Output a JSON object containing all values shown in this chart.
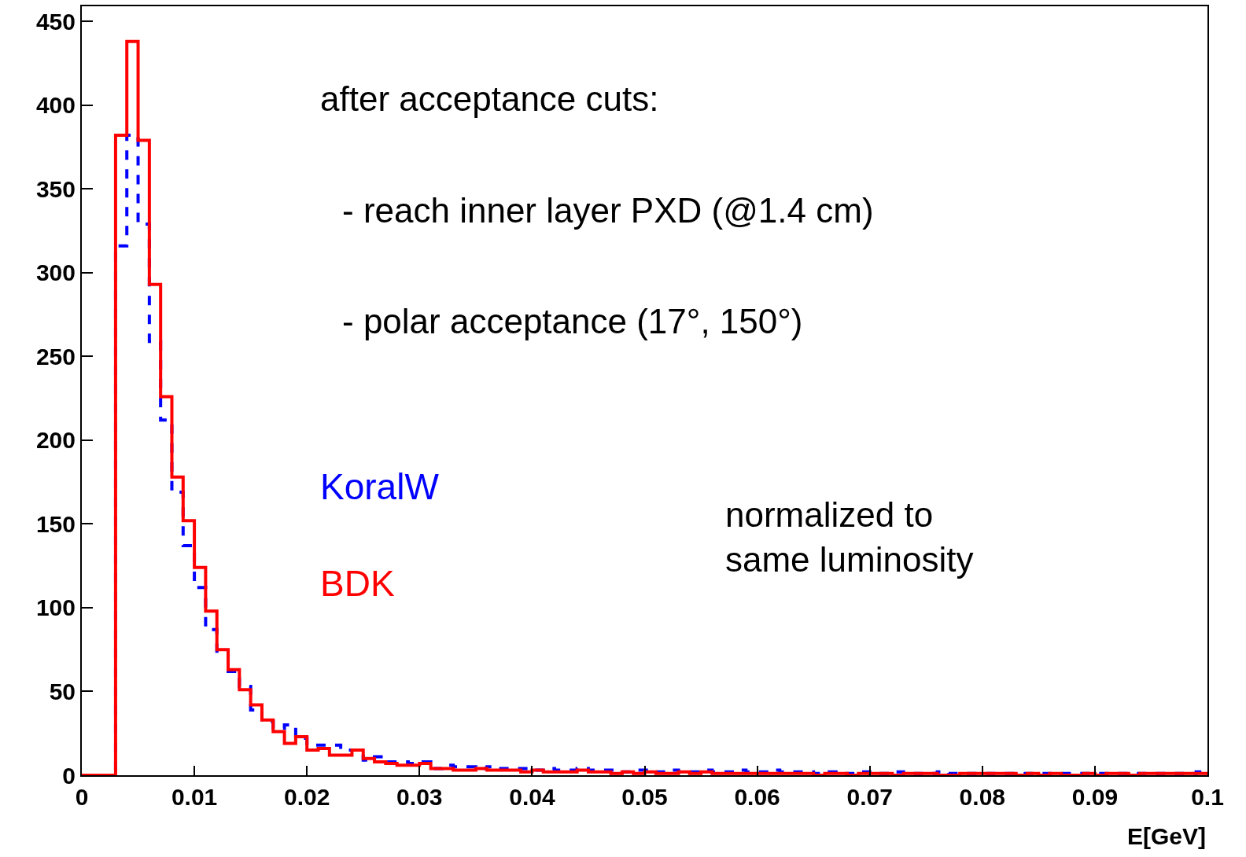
{
  "chart_data": {
    "type": "histogram",
    "xlabel": "E[GeV]",
    "bins": [
      0,
      0.001,
      0.002,
      0.003,
      0.004,
      0.005,
      0.006,
      0.007,
      0.008,
      0.009,
      0.01,
      0.011,
      0.012,
      0.013,
      0.014,
      0.015,
      0.016,
      0.017,
      0.018,
      0.019,
      0.02,
      0.021,
      0.022,
      0.023,
      0.024,
      0.025,
      0.026,
      0.027,
      0.028,
      0.029,
      0.03,
      0.031,
      0.032,
      0.033,
      0.034,
      0.035,
      0.036,
      0.037,
      0.038,
      0.039,
      0.04,
      0.041,
      0.042,
      0.043,
      0.044,
      0.045,
      0.046,
      0.047,
      0.048,
      0.049,
      0.05,
      0.051,
      0.052,
      0.053,
      0.054,
      0.055,
      0.056,
      0.057,
      0.058,
      0.059,
      0.06,
      0.061,
      0.062,
      0.063,
      0.064,
      0.065,
      0.066,
      0.067,
      0.068,
      0.069,
      0.07,
      0.071,
      0.072,
      0.073,
      0.074,
      0.075,
      0.076,
      0.077,
      0.078,
      0.079,
      0.08,
      0.081,
      0.082,
      0.083,
      0.084,
      0.085,
      0.086,
      0.087,
      0.088,
      0.089,
      0.09,
      0.091,
      0.092,
      0.093,
      0.094,
      0.095,
      0.096,
      0.097,
      0.098,
      0.099,
      0.1
    ],
    "series": [
      {
        "name": "KoralW",
        "color": "#0000ff",
        "line_style": "dashed",
        "values": [
          0,
          0,
          0,
          316,
          382,
          329,
          259,
          212,
          169,
          137,
          112,
          87,
          74,
          62,
          53,
          39,
          32,
          28,
          30,
          22,
          18,
          18,
          18,
          15,
          15,
          9,
          11,
          8,
          8,
          7,
          8,
          4,
          6,
          5,
          5,
          4,
          5,
          4,
          4,
          4,
          3,
          4,
          3,
          3,
          4,
          3,
          3,
          3,
          2,
          3,
          3,
          2,
          3,
          2,
          2,
          3,
          2,
          2,
          3,
          2,
          2,
          3,
          2,
          2,
          2,
          1,
          2,
          1,
          1,
          2,
          1,
          1,
          2,
          1,
          1,
          1,
          2,
          1,
          1,
          1,
          1,
          1,
          1,
          1,
          1,
          1,
          1,
          1,
          1,
          1,
          1,
          1,
          1,
          1,
          1,
          1,
          1,
          1,
          1,
          2
        ]
      },
      {
        "name": "BDK",
        "color": "#ff0000",
        "line_style": "solid",
        "values": [
          0,
          0,
          0,
          382,
          438,
          379,
          293,
          226,
          178,
          152,
          124,
          98,
          75,
          63,
          51,
          42,
          33,
          26,
          19,
          23,
          15,
          16,
          12,
          12,
          15,
          10,
          8,
          7,
          6,
          6,
          7,
          4,
          4,
          3,
          3,
          4,
          3,
          3,
          3,
          2,
          3,
          2,
          2,
          2,
          3,
          2,
          2,
          1,
          2,
          1,
          2,
          1,
          1,
          2,
          1,
          2,
          1,
          1,
          1,
          1,
          1,
          1,
          1,
          1,
          1,
          0,
          1,
          1,
          0,
          1,
          1,
          1,
          0,
          1,
          1,
          1,
          0,
          0,
          1,
          1,
          1,
          1,
          1,
          0,
          1,
          0,
          1,
          0,
          0,
          1,
          0,
          1,
          1,
          0,
          1,
          1,
          1,
          1,
          1,
          1
        ]
      }
    ],
    "xlim": [
      0,
      0.1
    ],
    "xticks": [
      0,
      0.01,
      0.02,
      0.03,
      0.04,
      0.05,
      0.06,
      0.07,
      0.08,
      0.09,
      0.1
    ],
    "ylim": [
      0,
      459
    ],
    "yticks": [
      0,
      50,
      100,
      150,
      200,
      250,
      300,
      350,
      400,
      450
    ],
    "grid": false,
    "legend": false,
    "annotations": [
      "after acceptance cuts:",
      "- reach inner layer PXD (@1.4 cm)",
      "- polar acceptance (17°, 150°)",
      "normalized to\nsame luminosity"
    ]
  }
}
